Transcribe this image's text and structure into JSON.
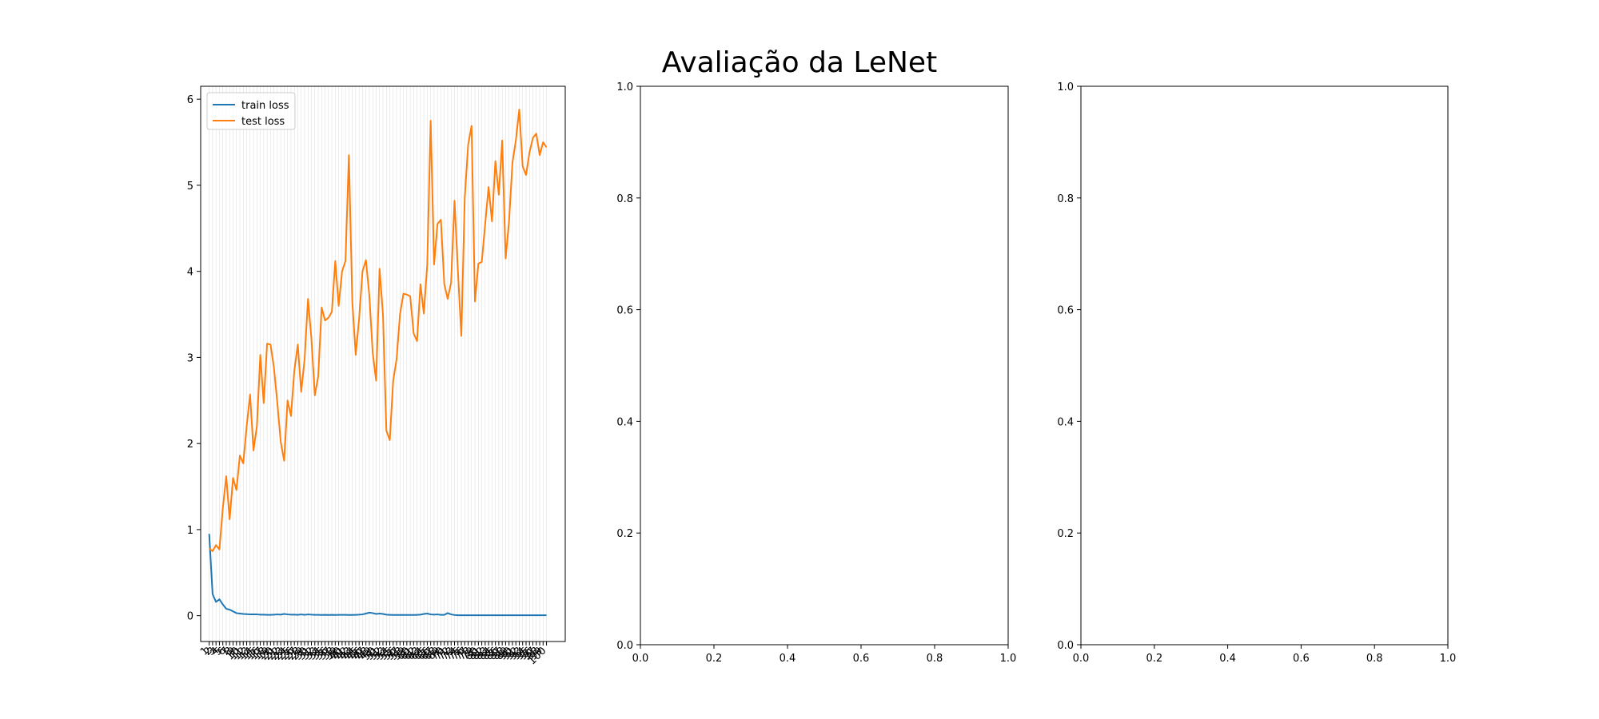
{
  "figure_title": "Avaliação da LeNet",
  "chart_data": [
    {
      "type": "line",
      "xlim": [
        -2.5,
        104.5
      ],
      "ylim": [
        -0.3,
        6.15
      ],
      "yticks": [
        0,
        1,
        2,
        3,
        4,
        5,
        6
      ],
      "xtick_labels": [
        "1",
        "2",
        "3",
        "4",
        "5",
        "6",
        "7",
        "8",
        "9",
        "10",
        "11",
        "12",
        "13",
        "14",
        "15",
        "16",
        "17",
        "18",
        "19",
        "20",
        "21",
        "22",
        "23",
        "24",
        "25",
        "26",
        "27",
        "28",
        "29",
        "30",
        "31",
        "32",
        "33",
        "34",
        "35",
        "36",
        "37",
        "38",
        "39",
        "40",
        "41",
        "42",
        "43",
        "44",
        "45",
        "46",
        "47",
        "48",
        "49",
        "50",
        "51",
        "52",
        "53",
        "54",
        "55",
        "56",
        "57",
        "58",
        "59",
        "60",
        "61",
        "62",
        "63",
        "64",
        "65",
        "66",
        "67",
        "68",
        "69",
        "70",
        "71",
        "72",
        "73",
        "74",
        "75",
        "76",
        "77",
        "78",
        "79",
        "80",
        "81",
        "82",
        "83",
        "84",
        "85",
        "86",
        "87",
        "88",
        "89",
        "90",
        "91",
        "92",
        "93",
        "94",
        "95",
        "96",
        "97",
        "98",
        "99",
        "100"
      ],
      "grid": "vertical",
      "legend_position": "top-left",
      "series": [
        {
          "name": "train loss",
          "color": "#1f77b4",
          "values": [
            0.95,
            0.25,
            0.16,
            0.19,
            0.13,
            0.08,
            0.07,
            0.05,
            0.03,
            0.025,
            0.02,
            0.018,
            0.015,
            0.015,
            0.015,
            0.012,
            0.012,
            0.01,
            0.01,
            0.012,
            0.015,
            0.012,
            0.02,
            0.015,
            0.012,
            0.012,
            0.01,
            0.015,
            0.01,
            0.015,
            0.012,
            0.01,
            0.01,
            0.008,
            0.01,
            0.008,
            0.01,
            0.008,
            0.01,
            0.01,
            0.01,
            0.008,
            0.008,
            0.01,
            0.012,
            0.015,
            0.025,
            0.035,
            0.03,
            0.02,
            0.025,
            0.02,
            0.012,
            0.01,
            0.008,
            0.008,
            0.008,
            0.008,
            0.008,
            0.008,
            0.008,
            0.01,
            0.012,
            0.02,
            0.025,
            0.015,
            0.012,
            0.015,
            0.01,
            0.01,
            0.03,
            0.015,
            0.008,
            0.005,
            0.005,
            0.005,
            0.005,
            0.005,
            0.005,
            0.005,
            0.005,
            0.005,
            0.005,
            0.005,
            0.005,
            0.005,
            0.005,
            0.005,
            0.005,
            0.005,
            0.005,
            0.005,
            0.005,
            0.005,
            0.005,
            0.005,
            0.005,
            0.005,
            0.005,
            0.005
          ]
        },
        {
          "name": "test loss",
          "color": "#ff7f0e",
          "values": [
            0.78,
            0.75,
            0.82,
            0.77,
            1.25,
            1.62,
            1.12,
            1.6,
            1.46,
            1.86,
            1.77,
            2.2,
            2.57,
            1.92,
            2.2,
            3.03,
            2.47,
            3.16,
            3.15,
            2.88,
            2.47,
            2.02,
            1.8,
            2.5,
            2.32,
            2.85,
            3.15,
            2.6,
            2.98,
            3.68,
            3.22,
            2.56,
            2.78,
            3.58,
            3.43,
            3.46,
            3.53,
            4.12,
            3.6,
            4.0,
            4.12,
            5.35,
            3.65,
            3.03,
            3.45,
            4.0,
            4.13,
            3.72,
            3.05,
            2.73,
            4.03,
            3.5,
            2.15,
            2.04,
            2.73,
            2.98,
            3.5,
            3.74,
            3.73,
            3.71,
            3.28,
            3.19,
            3.85,
            3.51,
            4.08,
            5.75,
            4.08,
            4.55,
            4.6,
            3.85,
            3.68,
            3.87,
            4.82,
            4.0,
            3.25,
            4.85,
            5.47,
            5.69,
            3.65,
            4.09,
            4.11,
            4.55,
            4.98,
            4.58,
            5.28,
            4.89,
            5.52,
            4.15,
            4.58,
            5.26,
            5.52,
            5.88,
            5.22,
            5.12,
            5.38,
            5.55,
            5.6,
            5.35,
            5.5,
            5.44
          ]
        }
      ]
    },
    {
      "type": "line",
      "xlim": [
        0,
        1
      ],
      "ylim": [
        0,
        1
      ],
      "xticks": [
        "0.0",
        "0.2",
        "0.4",
        "0.6",
        "0.8",
        "1.0"
      ],
      "yticks": [
        "0.0",
        "0.2",
        "0.4",
        "0.6",
        "0.8",
        "1.0"
      ],
      "series": []
    },
    {
      "type": "line",
      "xlim": [
        0,
        1
      ],
      "ylim": [
        0,
        1
      ],
      "xticks": [
        "0.0",
        "0.2",
        "0.4",
        "0.6",
        "0.8",
        "1.0"
      ],
      "yticks": [
        "0.0",
        "0.2",
        "0.4",
        "0.6",
        "0.8",
        "1.0"
      ],
      "series": []
    }
  ]
}
